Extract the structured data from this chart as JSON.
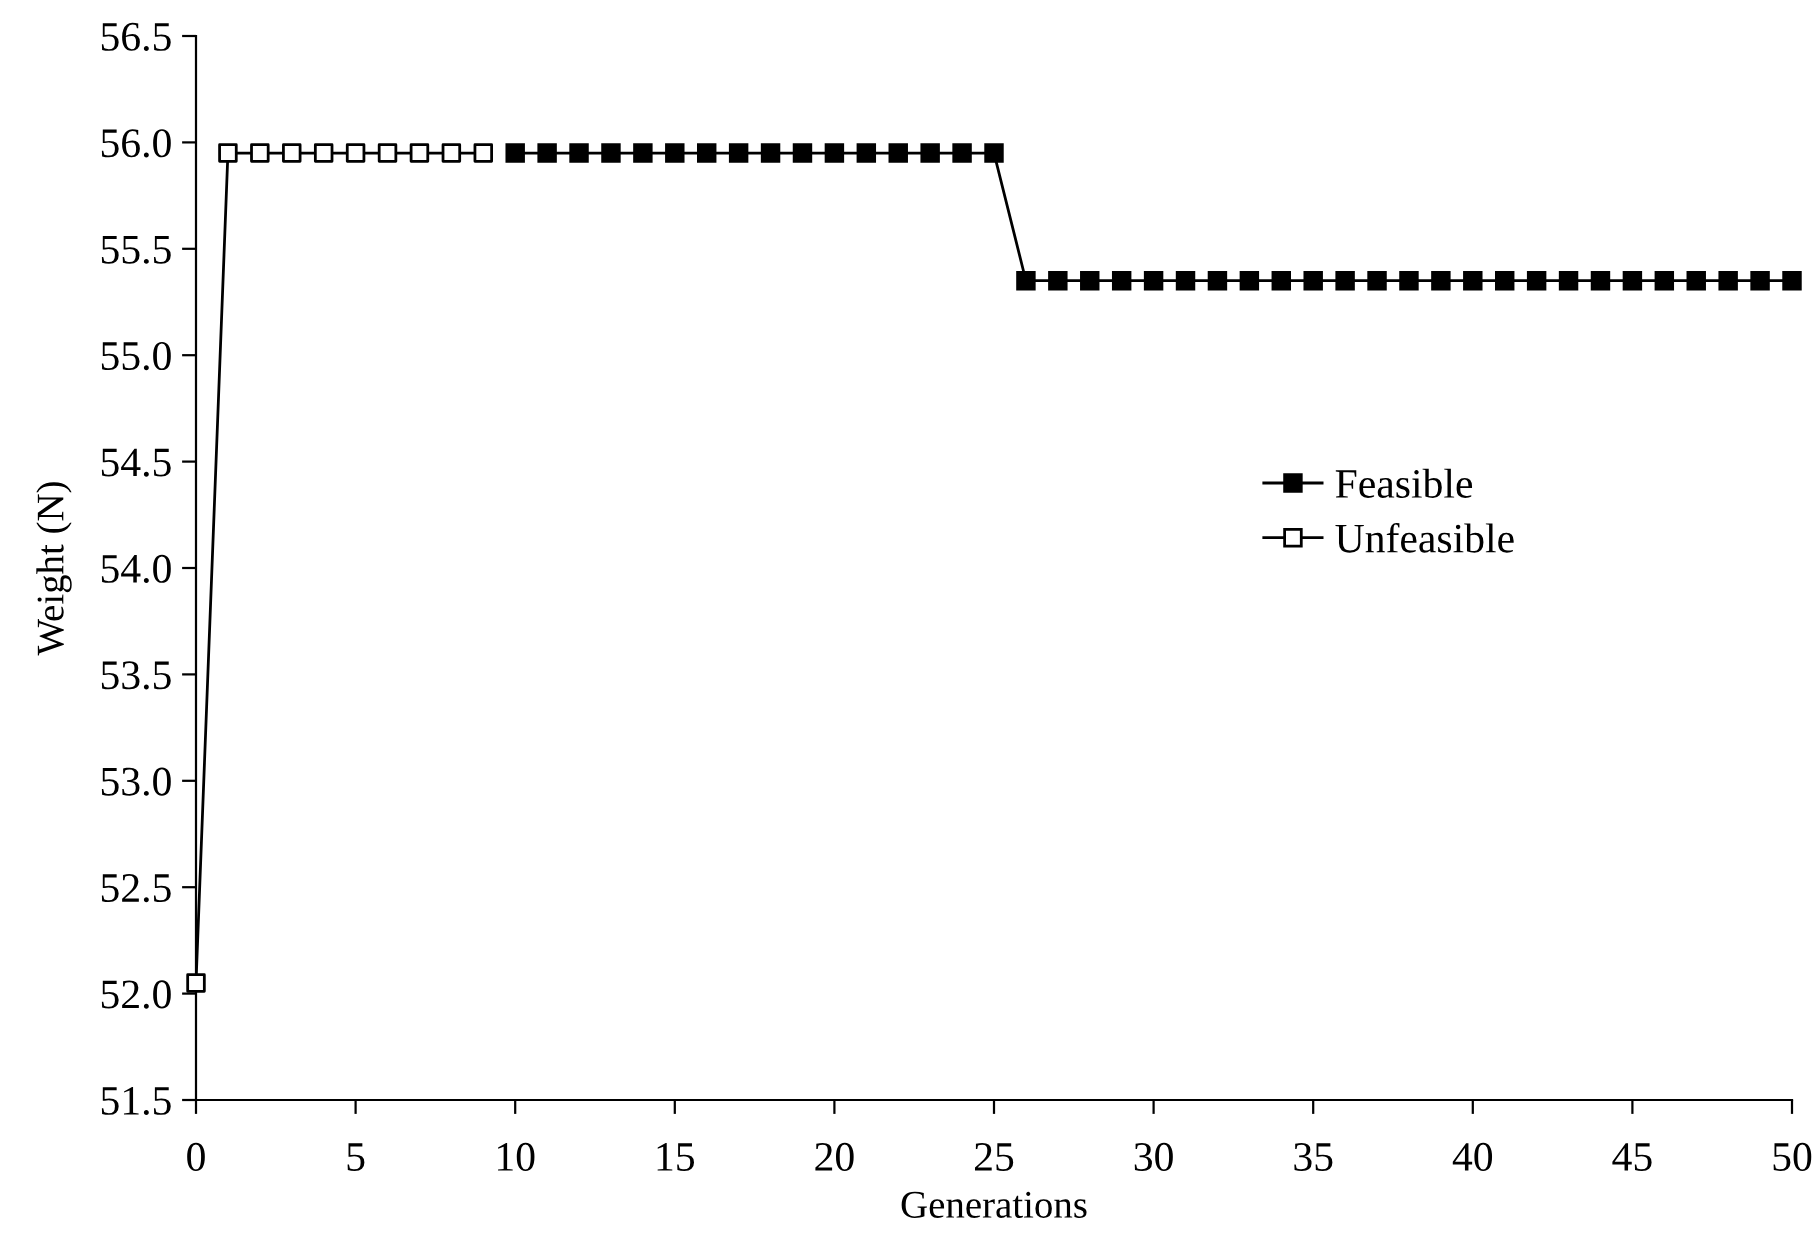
{
  "chart_data": {
    "type": "line",
    "xlabel": "Generations",
    "ylabel": "Weight (N)",
    "xlim": [
      0,
      50
    ],
    "xticks": [
      0,
      5,
      10,
      15,
      20,
      25,
      30,
      35,
      40,
      45,
      50
    ],
    "ylim": [
      51.5,
      56.5
    ],
    "yticks": [
      {
        "value": 51.5,
        "label": "51.5"
      },
      {
        "value": 52.0,
        "label": "52.0"
      },
      {
        "value": 52.5,
        "label": "52.5"
      },
      {
        "value": 53.0,
        "label": "53.0"
      },
      {
        "value": 53.5,
        "label": "53.5"
      },
      {
        "value": 54.0,
        "label": "54.0"
      },
      {
        "value": 54.5,
        "label": "54.5"
      },
      {
        "value": 55.0,
        "label": "55.0"
      },
      {
        "value": 55.5,
        "label": "55.5"
      },
      {
        "value": 56.0,
        "label": "56.0"
      },
      {
        "value": 56.5,
        "label": "56.5"
      }
    ],
    "grid": false,
    "legend": "right",
    "marker": "square",
    "line_style": "solid",
    "series": [
      {
        "name": "Feasible",
        "color": "#000000",
        "x": [
          10,
          11,
          12,
          13,
          14,
          15,
          16,
          17,
          18,
          19,
          20,
          21,
          22,
          23,
          24,
          25,
          26,
          27,
          28,
          29,
          30,
          31,
          32,
          33,
          34,
          35,
          36,
          37,
          38,
          39,
          40,
          41,
          42,
          43,
          44,
          45,
          46,
          47,
          48,
          49,
          50
        ],
        "values": [
          55.95,
          55.95,
          55.95,
          55.95,
          55.95,
          55.95,
          55.95,
          55.95,
          55.95,
          55.95,
          55.95,
          55.95,
          55.95,
          55.95,
          55.95,
          55.95,
          55.35,
          55.35,
          55.35,
          55.35,
          55.35,
          55.35,
          55.35,
          55.35,
          55.35,
          55.35,
          55.35,
          55.35,
          55.35,
          55.35,
          55.35,
          55.35,
          55.35,
          55.35,
          55.35,
          55.35,
          55.35,
          55.35,
          55.35,
          55.35,
          55.35
        ]
      },
      {
        "name": "Unfeasible",
        "color": "#000000",
        "colors": [
          "#ffffff",
          "#ffffff",
          "#ffffff",
          "#ffffff",
          "#ffffff",
          "#ffffff",
          "#ffffff",
          "#ffffff",
          "#ffffff",
          "#ffffff"
        ],
        "x": [
          0,
          1,
          2,
          3,
          4,
          5,
          6,
          7,
          8,
          9
        ],
        "values": [
          52.05,
          55.95,
          55.95,
          55.95,
          55.95,
          55.95,
          55.95,
          55.95,
          55.95,
          55.95
        ]
      }
    ]
  }
}
